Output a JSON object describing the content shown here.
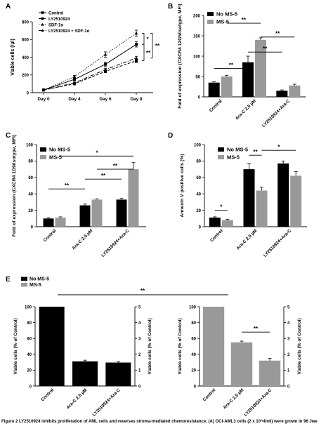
{
  "panels": {
    "A": {
      "letter": "A"
    },
    "B": {
      "letter": "B"
    },
    "C": {
      "letter": "C"
    },
    "D": {
      "letter": "D"
    },
    "E": {
      "letter": "E"
    }
  },
  "caption": {
    "text": "Figure 2 LY2510924 inhibits proliferation of AML cells and reverses stroma-mediated chemoresistance. (A) OCI-AML3 cells (2 x 10^4/ml) were grown in 96 Jwe"
  },
  "colors": {
    "no_ms5": "#000000",
    "ms5": "#999999"
  },
  "chart_data": [
    {
      "id": "A",
      "type": "line",
      "title": "",
      "xlabel": "",
      "ylabel": "Viable cells (/µl)",
      "ylim": [
        0,
        800
      ],
      "yticks": [
        0,
        200,
        400,
        600,
        800
      ],
      "categories": [
        "Day 0",
        "Day 4",
        "Day 6",
        "Day 8"
      ],
      "series": [
        {
          "name": "Control",
          "style": "solid",
          "marker": "square",
          "values": [
            30,
            150,
            320,
            545
          ],
          "errors": [
            5,
            15,
            25,
            30
          ]
        },
        {
          "name": "LY2510924",
          "style": "dashed",
          "marker": "square",
          "values": [
            30,
            100,
            240,
            360
          ],
          "errors": [
            5,
            10,
            15,
            20
          ]
        },
        {
          "name": "SDF-1α",
          "style": "dotted",
          "marker": "triangle",
          "values": [
            30,
            180,
            430,
            670
          ],
          "errors": [
            5,
            15,
            30,
            35
          ]
        },
        {
          "name": "LY2510924 + SDF-1α",
          "style": "dashdot",
          "marker": "triangle",
          "values": [
            30,
            110,
            260,
            390
          ],
          "errors": [
            5,
            10,
            15,
            20
          ]
        }
      ],
      "annotations": [
        "*",
        "**",
        "**"
      ],
      "legend": "top-left"
    },
    {
      "id": "B",
      "type": "bar",
      "title": "",
      "ylabel": "Fold of expression (CXCR4 12G5/isotype, MFI)",
      "ylim": [
        0,
        200
      ],
      "yticks": [
        0,
        50,
        100,
        150,
        200
      ],
      "categories": [
        "Control",
        "Ara-C 2.5 µM",
        "LY2510924+Ara-C"
      ],
      "series": [
        {
          "name": "No MS-5",
          "values": [
            35,
            85,
            15
          ],
          "errors": [
            2,
            15,
            2
          ]
        },
        {
          "name": "MS-5",
          "values": [
            50,
            140,
            28
          ],
          "errors": [
            3,
            5,
            3
          ]
        }
      ],
      "significance": [
        "**",
        "**",
        "**",
        "**"
      ],
      "legend": "top-left"
    },
    {
      "id": "C",
      "type": "bar",
      "title": "",
      "ylabel": "Fold of expression (CXCR4 1D9/isotype, MFI)",
      "ylim": [
        0,
        100
      ],
      "yticks": [
        0,
        20,
        40,
        60,
        80,
        100
      ],
      "categories": [
        "Control",
        "Ara-C 2.5 µM",
        "LY2510924+Ara-C"
      ],
      "series": [
        {
          "name": "No MS-5",
          "values": [
            10,
            26,
            33
          ],
          "errors": [
            1,
            1.5,
            1.5
          ]
        },
        {
          "name": "MS-5",
          "values": [
            11,
            33,
            70
          ],
          "errors": [
            1,
            1,
            8
          ]
        }
      ],
      "significance": [
        "**",
        "**",
        "**",
        "*"
      ],
      "legend": "top-left"
    },
    {
      "id": "D",
      "type": "bar",
      "title": "",
      "ylabel": "Annexin V positive cells (%)",
      "ylim": [
        0,
        100
      ],
      "yticks": [
        0,
        20,
        40,
        60,
        80,
        100
      ],
      "categories": [
        "Control",
        "Ara-C 2.5 µM",
        "LY2510924+Ara-C"
      ],
      "series": [
        {
          "name": "No MS-5",
          "values": [
            11,
            70,
            77
          ],
          "errors": [
            1,
            7,
            3
          ]
        },
        {
          "name": "MS-5",
          "values": [
            8,
            44,
            62
          ],
          "errors": [
            1,
            4,
            5
          ]
        }
      ],
      "significance": [
        "*",
        "**",
        "*"
      ],
      "legend": "top-left"
    },
    {
      "id": "E",
      "type": "bar",
      "title": "",
      "ylabel_left": "Viable cells (% of Control)",
      "ylabel_right": "Viable cells (% of Control)",
      "ylim_left": [
        0,
        100
      ],
      "yticks_left": [
        0,
        20,
        40,
        60,
        80,
        100
      ],
      "ylim_right": [
        0,
        5
      ],
      "yticks_right": [
        0,
        1,
        2,
        3,
        4,
        5
      ],
      "legend_entries": [
        "No MS-5",
        "MS-5"
      ],
      "groups": [
        {
          "series": "No MS-5",
          "categories": [
            "Control",
            "Ara-C 2.5 µM",
            "LY2510924+Ara-C"
          ],
          "values": [
            100,
            1.55,
            1.48
          ],
          "errors": [
            0,
            0.08,
            0.06
          ],
          "axis": [
            "left",
            "right",
            "right"
          ]
        },
        {
          "series": "MS-5",
          "categories": [
            "Control",
            "Ara-C 2.5 µM",
            "LY2510924+Ara-C"
          ],
          "values": [
            100,
            2.75,
            1.6
          ],
          "errors": [
            0,
            0.08,
            0.15
          ],
          "axis": [
            "left",
            "right",
            "right"
          ]
        }
      ],
      "significance": [
        "**",
        "**"
      ],
      "legend": "top-left"
    }
  ]
}
